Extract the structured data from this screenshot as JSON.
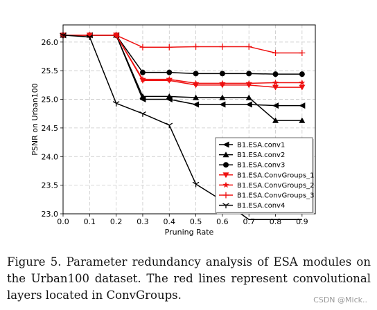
{
  "chart_data": {
    "type": "line",
    "xlabel": "Pruning Rate",
    "ylabel": "PSNR on Urban100",
    "xlim": [
      0.0,
      0.95
    ],
    "ylim": [
      23.0,
      26.3
    ],
    "x_ticks": [
      "0.0",
      "0.1",
      "0.2",
      "0.3",
      "0.4",
      "0.5",
      "0.6",
      "0.7",
      "0.8",
      "0.9"
    ],
    "y_ticks": [
      "23.0",
      "23.5",
      "24.0",
      "24.5",
      "25.0",
      "25.5",
      "26.0"
    ],
    "grid": true,
    "legend_position": "lower-right",
    "series": [
      {
        "name": "B1.ESA.conv1",
        "color": "#000000",
        "marker": "triangle-left",
        "x": [
          0.0,
          0.1,
          0.2,
          0.3,
          0.4,
          0.5,
          0.6,
          0.7,
          0.8,
          0.9
        ],
        "y": [
          26.12,
          26.12,
          26.12,
          25.0,
          25.0,
          24.91,
          24.91,
          24.91,
          24.89,
          24.89
        ]
      },
      {
        "name": "B1.ESA.conv2",
        "color": "#000000",
        "marker": "triangle-up",
        "x": [
          0.0,
          0.1,
          0.2,
          0.3,
          0.4,
          0.5,
          0.6,
          0.7,
          0.8,
          0.9
        ],
        "y": [
          26.12,
          26.12,
          26.12,
          25.05,
          25.05,
          25.03,
          25.03,
          25.03,
          24.63,
          24.63
        ]
      },
      {
        "name": "B1.ESA.conv3",
        "color": "#000000",
        "marker": "circle",
        "x": [
          0.0,
          0.1,
          0.2,
          0.3,
          0.4,
          0.5,
          0.6,
          0.7,
          0.8,
          0.9
        ],
        "y": [
          26.12,
          26.12,
          26.12,
          25.47,
          25.47,
          25.45,
          25.45,
          25.45,
          25.44,
          25.44
        ]
      },
      {
        "name": "B1.ESA.ConvGroups_1",
        "color": "#ee1111",
        "marker": "triangle-down",
        "x": [
          0.0,
          0.1,
          0.2,
          0.3,
          0.4,
          0.5,
          0.6,
          0.7,
          0.8,
          0.9
        ],
        "y": [
          26.12,
          26.12,
          26.12,
          25.33,
          25.33,
          25.25,
          25.25,
          25.25,
          25.21,
          25.21
        ]
      },
      {
        "name": "B1.ESA.ConvGroups_2",
        "color": "#ee1111",
        "marker": "star",
        "x": [
          0.0,
          0.1,
          0.2,
          0.3,
          0.4,
          0.5,
          0.6,
          0.7,
          0.8,
          0.9
        ],
        "y": [
          26.12,
          26.12,
          26.12,
          25.35,
          25.35,
          25.28,
          25.28,
          25.28,
          25.29,
          25.29
        ]
      },
      {
        "name": "B1.ESA.ConvGroups_3",
        "color": "#ee1111",
        "marker": "plus",
        "x": [
          0.0,
          0.1,
          0.2,
          0.3,
          0.4,
          0.5,
          0.6,
          0.7,
          0.8,
          0.9
        ],
        "y": [
          26.12,
          26.12,
          26.12,
          25.91,
          25.91,
          25.92,
          25.92,
          25.92,
          25.81,
          25.81
        ]
      },
      {
        "name": "B1.ESA.conv4",
        "color": "#000000",
        "marker": "tri-down",
        "x": [
          0.0,
          0.1,
          0.2,
          0.3,
          0.4,
          0.5,
          0.6,
          0.7,
          0.8,
          0.9
        ],
        "y": [
          26.12,
          26.09,
          24.93,
          24.75,
          24.55,
          23.52,
          23.23,
          22.9,
          22.9,
          22.9
        ]
      }
    ]
  },
  "caption": "Figure 5. Parameter redundancy analysis of ESA modules on the Urban100 dataset. The red lines represent convolutional layers located in ConvGroups.",
  "watermark": "CSDN @Mick.."
}
